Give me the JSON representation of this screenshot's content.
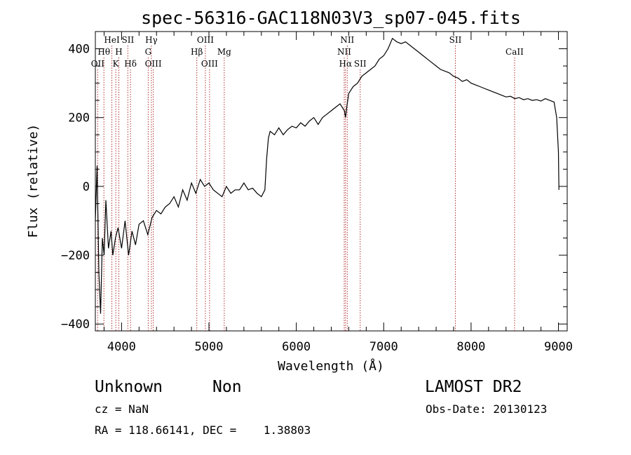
{
  "chart_data": {
    "type": "line",
    "title": "spec-56316-GAC118N03V3_sp07-045.fits",
    "xlabel": "Wavelength (Å)",
    "ylabel": "Flux (relative)",
    "xlim": [
      3700,
      9100
    ],
    "ylim": [
      -420,
      450
    ],
    "xticks": [
      4000,
      5000,
      6000,
      7000,
      8000,
      9000
    ],
    "yticks": [
      -400,
      -200,
      0,
      200,
      400
    ],
    "xtick_labels": [
      "4000",
      "5000",
      "6000",
      "7000",
      "8000",
      "9000"
    ],
    "ytick_labels": [
      "−400",
      "−200",
      "0",
      "200",
      "400"
    ],
    "grid": false,
    "legend": "none",
    "line_color": "#000000",
    "marker_color": "#b03030",
    "series": [
      {
        "x": [
          3700,
          3720,
          3740,
          3760,
          3780,
          3800,
          3820,
          3850,
          3880,
          3900,
          3930,
          3960,
          4000,
          4040,
          4080,
          4120,
          4160,
          4200,
          4250,
          4300,
          4350,
          4400,
          4450,
          4500,
          4550,
          4600,
          4650,
          4700,
          4750,
          4800,
          4850,
          4900,
          4950,
          5000,
          5050,
          5100,
          5150,
          5200,
          5250,
          5300,
          5350,
          5400,
          5450,
          5500,
          5550,
          5600,
          5640,
          5660,
          5680,
          5700,
          5750,
          5800,
          5850,
          5900,
          5950,
          6000,
          6050,
          6100,
          6150,
          6200,
          6250,
          6300,
          6350,
          6400,
          6450,
          6500,
          6550,
          6563,
          6580,
          6600,
          6650,
          6700,
          6750,
          6800,
          6850,
          6900,
          6950,
          7000,
          7050,
          7100,
          7150,
          7200,
          7250,
          7300,
          7350,
          7400,
          7450,
          7500,
          7550,
          7600,
          7650,
          7700,
          7750,
          7800,
          7850,
          7900,
          7950,
          8000,
          8050,
          8100,
          8150,
          8200,
          8250,
          8300,
          8350,
          8400,
          8450,
          8500,
          8550,
          8600,
          8650,
          8700,
          8750,
          8800,
          8850,
          8900,
          8950,
          8980,
          9000,
          9005
        ],
        "y": [
          -100,
          60,
          -250,
          -370,
          -150,
          -200,
          -40,
          -180,
          -130,
          -200,
          -150,
          -120,
          -180,
          -100,
          -200,
          -130,
          -170,
          -110,
          -100,
          -140,
          -90,
          -70,
          -80,
          -60,
          -50,
          -30,
          -60,
          -10,
          -40,
          10,
          -20,
          20,
          0,
          10,
          -10,
          -20,
          -30,
          0,
          -20,
          -10,
          -10,
          10,
          -10,
          -5,
          -20,
          -30,
          -10,
          80,
          140,
          160,
          150,
          170,
          150,
          165,
          175,
          170,
          185,
          175,
          190,
          200,
          180,
          200,
          210,
          220,
          230,
          240,
          220,
          200,
          235,
          270,
          290,
          300,
          320,
          330,
          340,
          350,
          370,
          380,
          400,
          430,
          420,
          415,
          420,
          410,
          400,
          390,
          380,
          370,
          360,
          350,
          340,
          335,
          330,
          320,
          315,
          305,
          310,
          300,
          295,
          290,
          285,
          280,
          275,
          270,
          265,
          260,
          262,
          255,
          258,
          252,
          255,
          250,
          252,
          248,
          255,
          250,
          245,
          200,
          100,
          -10
        ]
      }
    ],
    "lines": [
      {
        "label": "Hθ",
        "x": 3798,
        "row": 2
      },
      {
        "label": "OII",
        "x": 3727,
        "row": 3
      },
      {
        "label": "HeI",
        "x": 3889,
        "row": 1
      },
      {
        "label": "K",
        "x": 3934,
        "row": 3
      },
      {
        "label": "H",
        "x": 3969,
        "row": 2
      },
      {
        "label": "SII",
        "x": 4072,
        "row": 1
      },
      {
        "label": "Hδ",
        "x": 4102,
        "row": 3
      },
      {
        "label": "Hγ",
        "x": 4341,
        "row": 1
      },
      {
        "label": "G",
        "x": 4305,
        "row": 2
      },
      {
        "label": "OIII",
        "x": 4363,
        "row": 3
      },
      {
        "label": "OIII",
        "x": 4959,
        "row": 1
      },
      {
        "label": "Hβ",
        "x": 4861,
        "row": 2
      },
      {
        "label": "OIII",
        "x": 5007,
        "row": 3
      },
      {
        "label": "Mg",
        "x": 5175,
        "row": 2
      },
      {
        "label": "NII",
        "x": 6583,
        "row": 1
      },
      {
        "label": "NII",
        "x": 6548,
        "row": 2
      },
      {
        "label": "Hα",
        "x": 6563,
        "row": 3
      },
      {
        "label": "SII",
        "x": 6731,
        "row": 3
      },
      {
        "label": "SII",
        "x": 7820,
        "row": 1
      },
      {
        "label": "CaII",
        "x": 8498,
        "row": 2
      }
    ]
  },
  "footer": {
    "class_label": "Unknown",
    "subclass_label": "Non",
    "survey": "LAMOST DR2",
    "cz": "cz = NaN",
    "obs_date": "Obs-Date: 20130123",
    "coords": "RA = 118.66141, DEC =    1.38803"
  }
}
